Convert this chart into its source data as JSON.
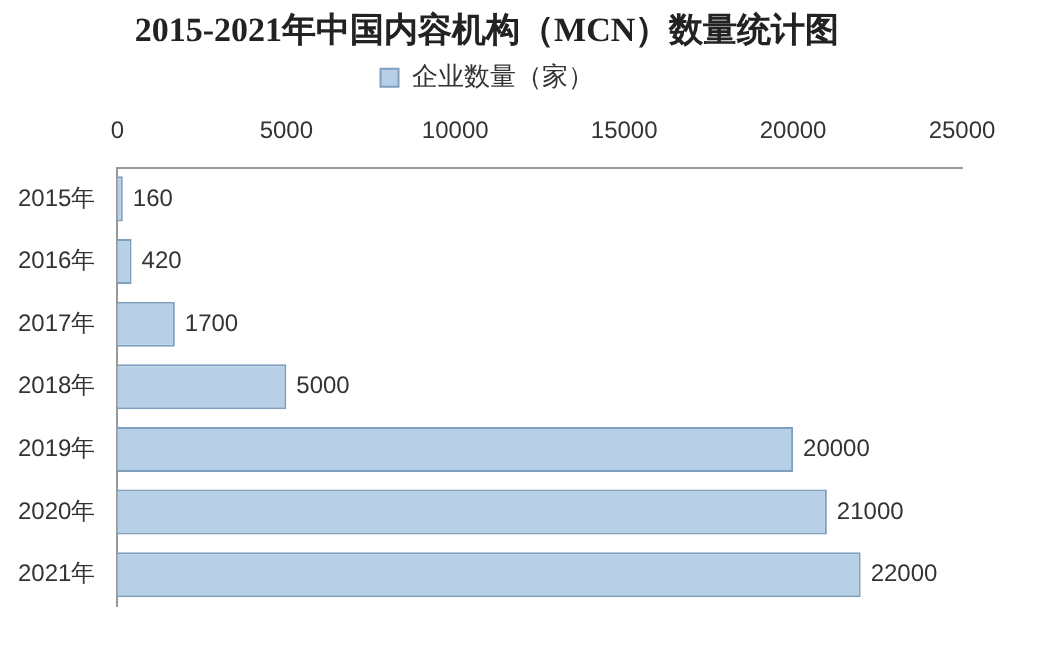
{
  "chart_data": {
    "type": "bar",
    "orientation": "horizontal",
    "title": "2015-2021年中国内容机构（MCN）数量统计图",
    "categories": [
      "2015年",
      "2016年",
      "2017年",
      "2018年",
      "2019年",
      "2020年",
      "2021年"
    ],
    "series": [
      {
        "name": "企业数量（家）",
        "color": "#b7d0e8",
        "values": [
          160,
          420,
          1700,
          5000,
          20000,
          21000,
          22000
        ]
      }
    ],
    "xlim": [
      0,
      25000
    ],
    "xticks": [
      0,
      5000,
      10000,
      15000,
      20000,
      25000
    ],
    "data_labels": true,
    "grid": false,
    "legend": "top"
  }
}
